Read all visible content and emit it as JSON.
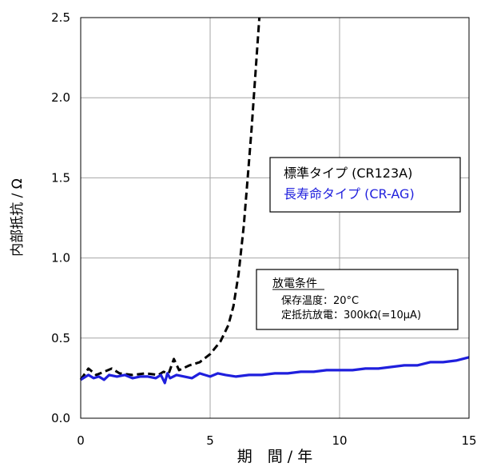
{
  "chart_data": {
    "type": "line",
    "xlabel": "期　間 / 年",
    "ylabel": "内部抵抗 / Ω",
    "xlim": [
      0,
      15
    ],
    "ylim": [
      0,
      2.5
    ],
    "x_ticks": [
      "0",
      "5",
      "10",
      "15"
    ],
    "y_ticks": [
      "0.0",
      "0.5",
      "1.0",
      "1.5",
      "2.0",
      "2.5"
    ],
    "grid": true,
    "legend": {
      "placement": "right",
      "entries": [
        "標準タイプ (CR123A)",
        "長寿命タイプ (CR-AG)"
      ]
    },
    "annotation": {
      "title": "放電条件",
      "lines": [
        "保存温度：20°C",
        "定抵抗放電：300kΩ(=10μA)"
      ]
    },
    "series": [
      {
        "name": "標準タイプ (CR123A)",
        "color": "#000000",
        "style": "dashed",
        "x": [
          0,
          0.3,
          0.6,
          0.9,
          1.2,
          1.5,
          2.0,
          2.5,
          3.0,
          3.2,
          3.4,
          3.6,
          3.8,
          4.2,
          4.6,
          5.0,
          5.4,
          5.7,
          5.9,
          6.1,
          6.3,
          6.45,
          6.6,
          6.75,
          6.9
        ],
        "y": [
          0.24,
          0.31,
          0.27,
          0.29,
          0.31,
          0.28,
          0.27,
          0.28,
          0.27,
          0.29,
          0.28,
          0.37,
          0.3,
          0.33,
          0.35,
          0.4,
          0.48,
          0.58,
          0.7,
          0.9,
          1.2,
          1.5,
          1.8,
          2.15,
          2.5
        ]
      },
      {
        "name": "長寿命タイプ (CR-AG)",
        "color": "#1f1fdd",
        "style": "solid",
        "x": [
          0,
          0.3,
          0.5,
          0.7,
          0.9,
          1.1,
          1.4,
          1.7,
          2.0,
          2.3,
          2.6,
          2.9,
          3.1,
          3.25,
          3.35,
          3.45,
          3.7,
          4.0,
          4.3,
          4.6,
          5.0,
          5.3,
          5.6,
          6.0,
          6.5,
          7.0,
          7.5,
          8.0,
          8.5,
          9.0,
          9.5,
          10.0,
          10.5,
          11.0,
          11.5,
          12.0,
          12.5,
          13.0,
          13.5,
          14.0,
          14.5,
          15.0
        ],
        "y": [
          0.24,
          0.27,
          0.25,
          0.26,
          0.24,
          0.27,
          0.26,
          0.27,
          0.25,
          0.26,
          0.26,
          0.25,
          0.27,
          0.22,
          0.28,
          0.25,
          0.27,
          0.26,
          0.25,
          0.28,
          0.26,
          0.28,
          0.27,
          0.26,
          0.27,
          0.27,
          0.28,
          0.28,
          0.29,
          0.29,
          0.3,
          0.3,
          0.3,
          0.31,
          0.31,
          0.32,
          0.33,
          0.33,
          0.35,
          0.35,
          0.36,
          0.38
        ]
      }
    ]
  }
}
